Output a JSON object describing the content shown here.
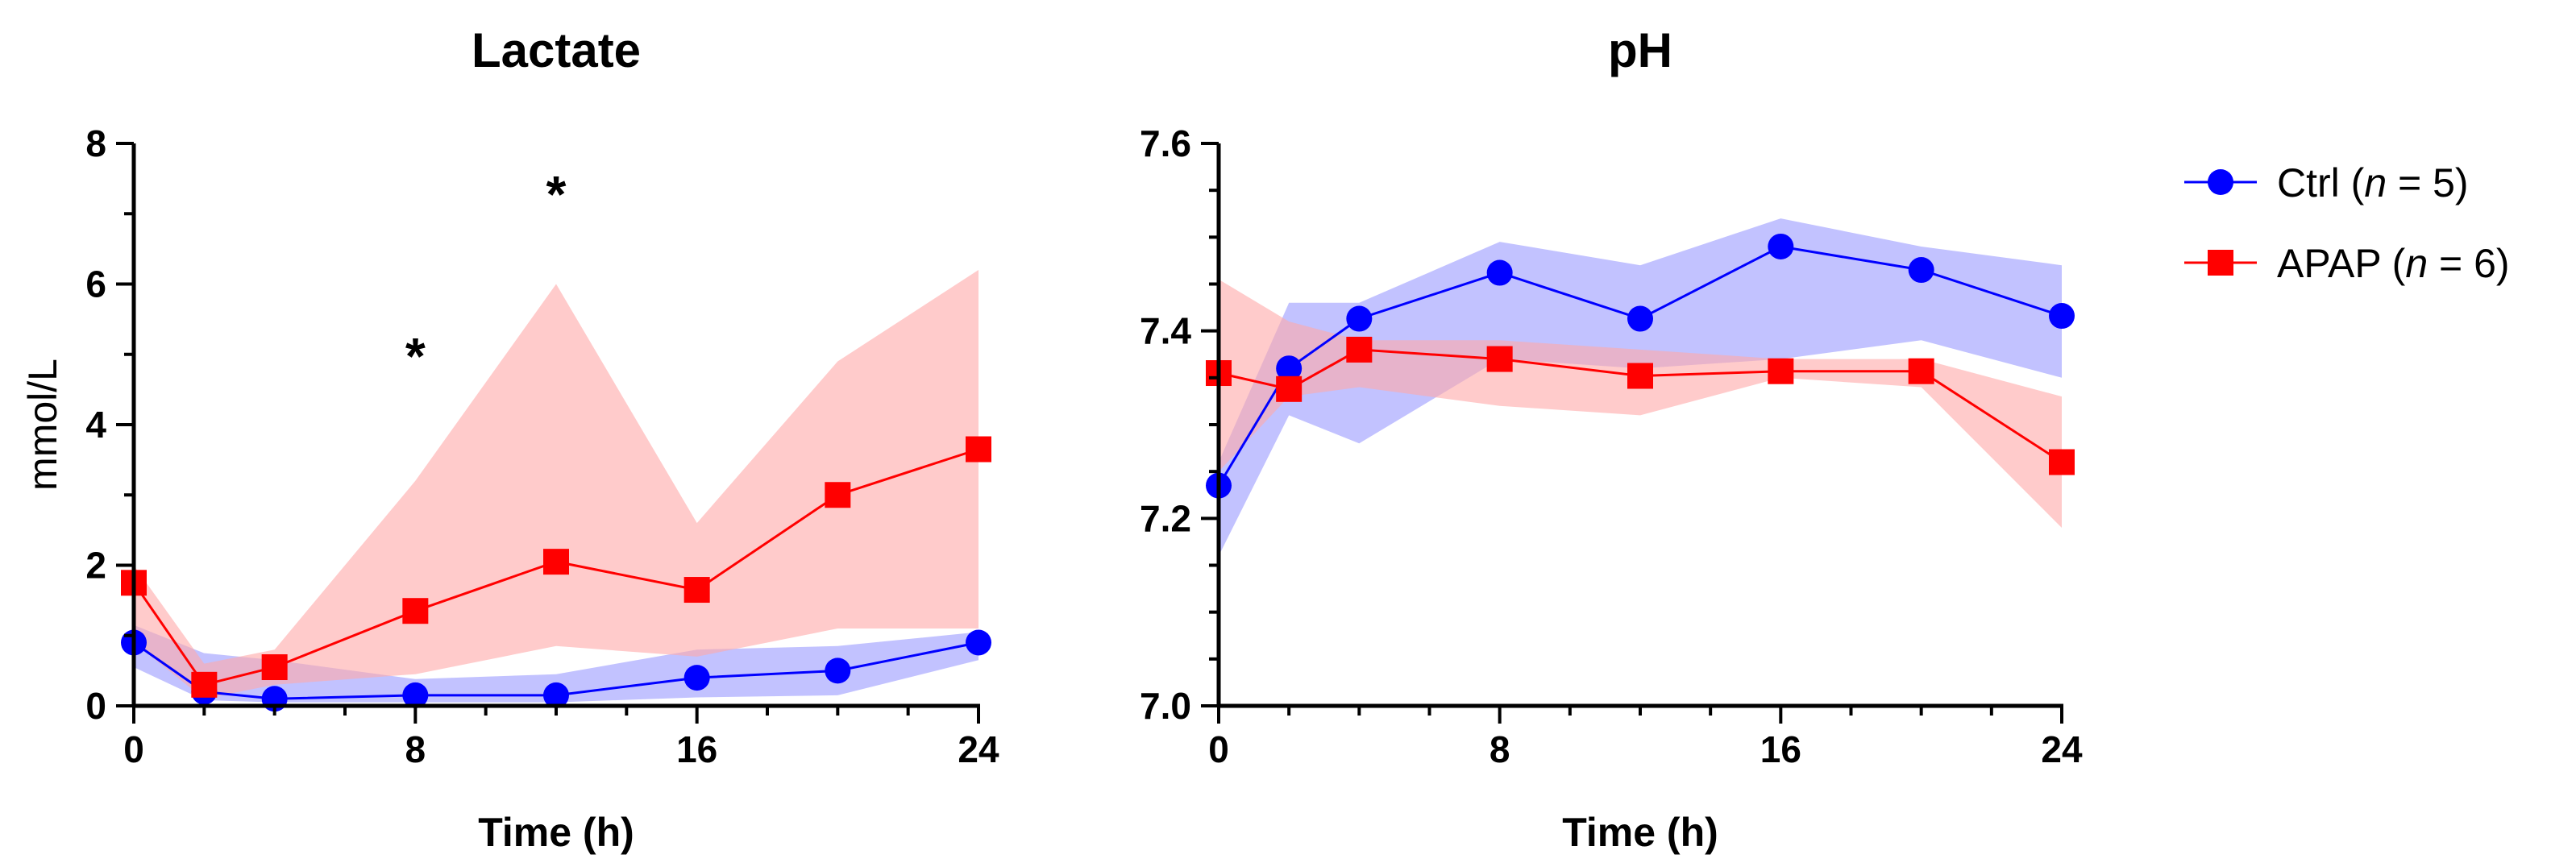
{
  "chart_data": [
    {
      "type": "line",
      "title": "Lactate",
      "xlabel": "Time (h)",
      "ylabel": "mmol/L",
      "xlim": [
        0,
        24
      ],
      "ylim": [
        0,
        8
      ],
      "xticks": [
        0,
        8,
        16,
        24
      ],
      "xtick_labels": [
        "0",
        "8",
        "16",
        "24"
      ],
      "yticks": [
        0,
        2,
        4,
        6,
        8
      ],
      "ytick_labels": [
        "0",
        "2",
        "4",
        "6",
        "8"
      ],
      "x_minor_step": 2,
      "y_minor_step": 1,
      "grid": false,
      "series": [
        {
          "name": "Ctrl",
          "color": "#0000ff",
          "band_color": "#9a9aff",
          "marker": "circle",
          "x": [
            0,
            2,
            4,
            8,
            12,
            16,
            20,
            24
          ],
          "values": [
            0.9,
            0.2,
            0.1,
            0.15,
            0.15,
            0.4,
            0.5,
            0.9
          ],
          "lower": [
            0.55,
            0.08,
            0.05,
            0.05,
            0.05,
            0.12,
            0.15,
            0.65
          ],
          "upper": [
            1.15,
            0.75,
            0.65,
            0.38,
            0.45,
            0.8,
            0.85,
            1.05
          ]
        },
        {
          "name": "APAP",
          "color": "#ff0000",
          "band_color": "#ffa8a8",
          "marker": "square",
          "x": [
            0,
            2,
            4,
            8,
            12,
            16,
            20,
            24
          ],
          "values": [
            1.75,
            0.3,
            0.55,
            1.35,
            2.05,
            1.65,
            3.0,
            3.65
          ],
          "lower": [
            0.9,
            0.1,
            0.3,
            0.45,
            0.85,
            0.7,
            1.1,
            1.1
          ],
          "upper": [
            2.0,
            0.6,
            0.8,
            3.2,
            6.0,
            2.6,
            4.9,
            6.2
          ]
        }
      ],
      "annotations": [
        {
          "text": "*",
          "x": 8,
          "y": 5.0
        },
        {
          "text": "*",
          "x": 12,
          "y": 7.3
        }
      ]
    },
    {
      "type": "line",
      "title": "pH",
      "xlabel": "Time (h)",
      "ylabel": "",
      "xlim": [
        0,
        24
      ],
      "ylim": [
        7.0,
        7.6
      ],
      "xticks": [
        0,
        8,
        16,
        24
      ],
      "xtick_labels": [
        "0",
        "8",
        "16",
        "24"
      ],
      "yticks": [
        7.0,
        7.2,
        7.4,
        7.6
      ],
      "ytick_labels": [
        "7.0",
        "7.2",
        "7.4",
        "7.6"
      ],
      "x_minor_step": 2,
      "y_minor_step": 0.05,
      "grid": false,
      "series": [
        {
          "name": "Ctrl",
          "color": "#0000ff",
          "band_color": "#9a9aff",
          "marker": "circle",
          "x": [
            0,
            2,
            4,
            8,
            12,
            16,
            20,
            24
          ],
          "values": [
            7.235,
            7.36,
            7.413,
            7.462,
            7.413,
            7.49,
            7.465,
            7.416
          ],
          "lower": [
            7.16,
            7.31,
            7.28,
            7.37,
            7.36,
            7.37,
            7.39,
            7.35
          ],
          "upper": [
            7.26,
            7.43,
            7.43,
            7.495,
            7.47,
            7.52,
            7.49,
            7.47
          ]
        },
        {
          "name": "APAP",
          "color": "#ff0000",
          "band_color": "#ffa8a8",
          "marker": "square",
          "x": [
            0,
            2,
            4,
            8,
            12,
            16,
            20,
            24
          ],
          "values": [
            7.355,
            7.338,
            7.38,
            7.37,
            7.352,
            7.357,
            7.357,
            7.26
          ],
          "lower": [
            7.25,
            7.33,
            7.34,
            7.32,
            7.31,
            7.35,
            7.34,
            7.19
          ],
          "upper": [
            7.455,
            7.41,
            7.39,
            7.39,
            7.38,
            7.37,
            7.37,
            7.33
          ]
        }
      ],
      "annotations": []
    }
  ],
  "legend": {
    "placement": "right",
    "items": [
      {
        "label_prefix": "Ctrl (",
        "label_italic": "n",
        "label_suffix": " = 5)",
        "color": "#0000ff",
        "marker": "circle"
      },
      {
        "label_prefix": "APAP (",
        "label_italic": "n",
        "label_suffix": " = 6)",
        "color": "#ff0000",
        "marker": "square"
      }
    ]
  }
}
